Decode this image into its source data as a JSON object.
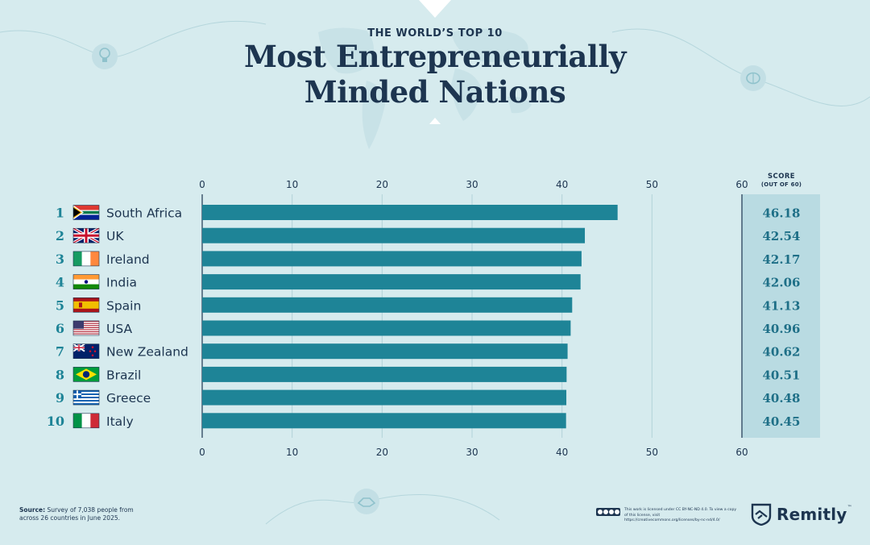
{
  "header": {
    "eyebrow": "THE WORLD’S TOP 10",
    "title_line1": "Most Entrepreneurially",
    "title_line2": "Minded Nations"
  },
  "score_column": {
    "heading_line1": "SCORE",
    "heading_line2": "(OUT OF 60)"
  },
  "chart_data": {
    "type": "bar",
    "orientation": "horizontal",
    "title": "Most Entrepreneurially Minded Nations",
    "xlim": [
      0,
      60
    ],
    "xticks": [
      0,
      10,
      20,
      30,
      40,
      50,
      60
    ],
    "grid": true,
    "categories": [
      "South Africa",
      "UK",
      "Ireland",
      "India",
      "Spain",
      "USA",
      "New Zealand",
      "Brazil",
      "Greece",
      "Italy"
    ],
    "ranks": [
      "1",
      "2",
      "3",
      "4",
      "5",
      "6",
      "7",
      "8",
      "9",
      "10"
    ],
    "values": [
      46.18,
      42.54,
      42.17,
      42.06,
      41.13,
      40.96,
      40.62,
      40.51,
      40.48,
      40.45
    ],
    "value_labels": [
      "46.18",
      "42.54",
      "42.17",
      "42.06",
      "41.13",
      "40.96",
      "40.62",
      "40.51",
      "40.48",
      "40.45"
    ],
    "flags": [
      "flag-south-africa",
      "flag-uk",
      "flag-ireland",
      "flag-india",
      "flag-spain",
      "flag-usa",
      "flag-new-zealand",
      "flag-brazil",
      "flag-greece",
      "flag-italy"
    ],
    "bar_color": "#1e8497"
  },
  "footer": {
    "source_label": "Source:",
    "source_text": "Survey of 7,038 people from across 26 countries in June 2025.",
    "license_text": "This work is licensed under CC BY-NC-ND 4.0. To view a copy of this license, visit https://creativecommons.org/licenses/by-nc-nd/4.0/",
    "brand": "Remitly",
    "brand_mark": "™"
  },
  "colors": {
    "background": "#d6ebee",
    "navy": "#1d3550",
    "bar": "#1e8497",
    "score_panel": "#b9dbe2",
    "rank": "#1e8497"
  },
  "icons": [
    "lightbulb-icon",
    "brain-icon",
    "handshake-icon",
    "remitly-logo-icon",
    "cc-license-icon"
  ]
}
